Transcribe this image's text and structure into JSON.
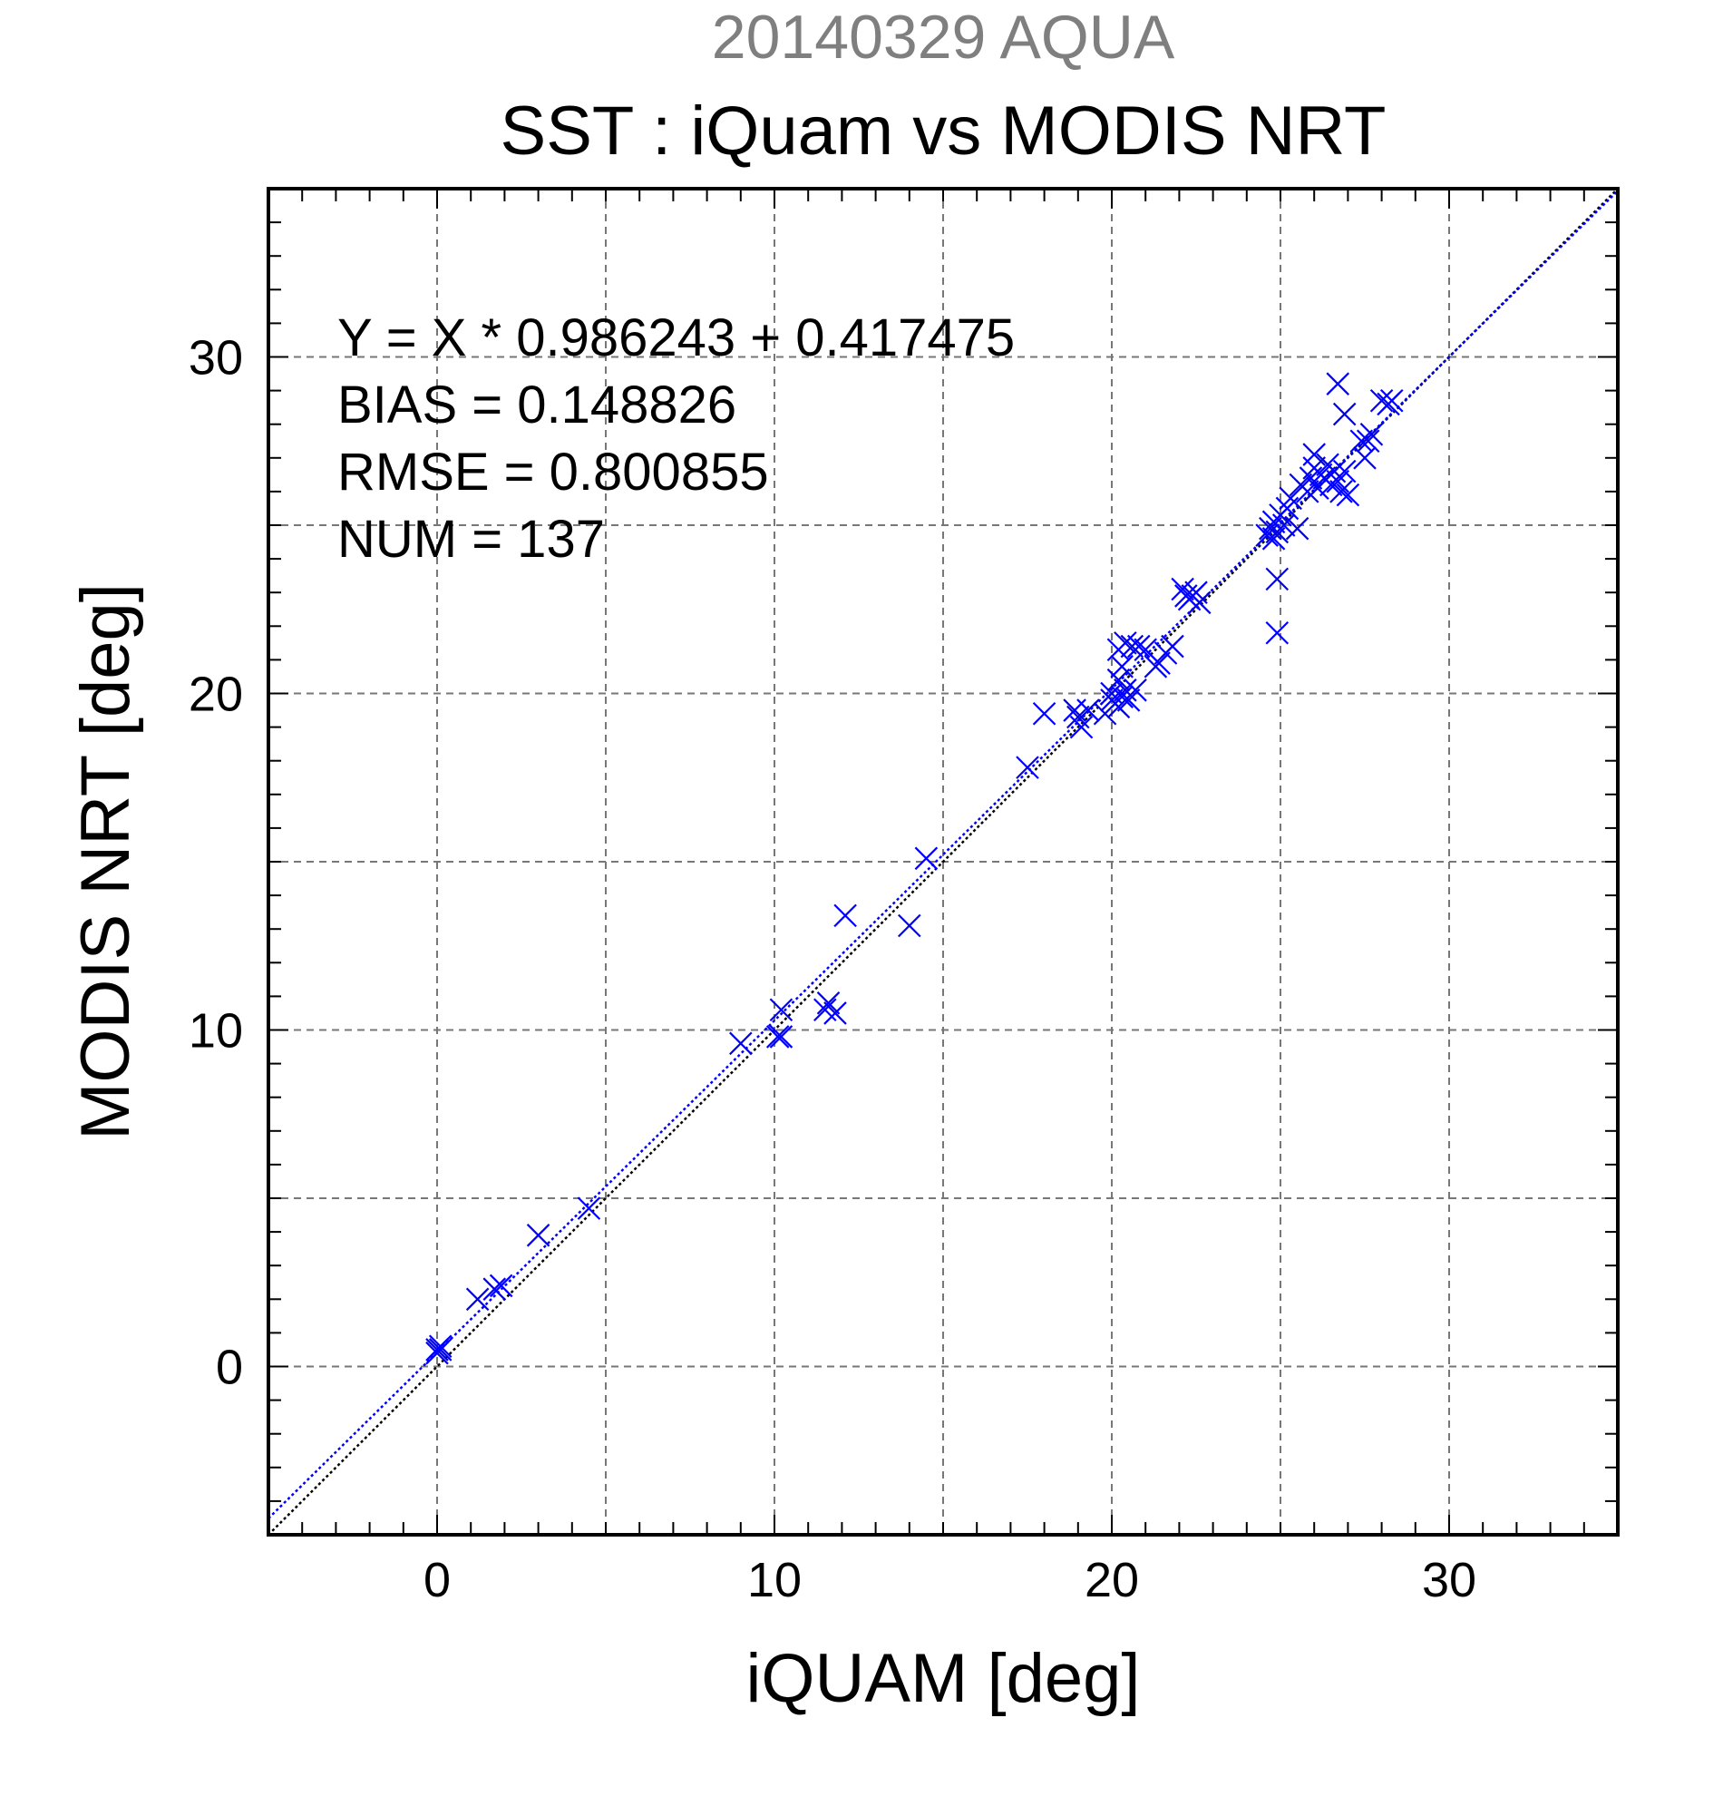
{
  "chart_data": {
    "type": "scatter",
    "supertitle": "20140329 AQUA",
    "title": "SST : iQuam vs MODIS NRT",
    "xlabel": "iQUAM [deg]",
    "ylabel": "MODIS NRT [deg]",
    "xlim": [
      -5,
      35
    ],
    "ylim": [
      -5,
      35
    ],
    "xticks": [
      "0",
      "10",
      "20",
      "30"
    ],
    "yticks": [
      "0",
      "10",
      "20",
      "30"
    ],
    "grid": true,
    "stats": [
      "Y = X * 0.986243 + 0.417475",
      "BIAS = 0.148826",
      "RMSE = 0.800855",
      "NUM = 137"
    ],
    "fit": {
      "slope": 0.986243,
      "intercept": 0.417475
    },
    "colors": {
      "points": "#0000ff",
      "fit_line": "#0000ff",
      "identity_line": "#000000",
      "supertitle": "#7f7f7f"
    },
    "points": [
      [
        0.0,
        0.5
      ],
      [
        0.1,
        0.6
      ],
      [
        0.0,
        0.4
      ],
      [
        0.1,
        0.5
      ],
      [
        1.2,
        2.0
      ],
      [
        1.7,
        2.3
      ],
      [
        1.9,
        2.4
      ],
      [
        3.0,
        3.9
      ],
      [
        4.5,
        4.7
      ],
      [
        9.0,
        9.6
      ],
      [
        10.1,
        9.8
      ],
      [
        10.2,
        9.8
      ],
      [
        10.2,
        10.6
      ],
      [
        11.5,
        10.6
      ],
      [
        11.6,
        10.8
      ],
      [
        11.8,
        10.5
      ],
      [
        12.1,
        13.4
      ],
      [
        14.0,
        13.1
      ],
      [
        14.5,
        15.1
      ],
      [
        17.5,
        17.8
      ],
      [
        18.0,
        19.4
      ],
      [
        18.9,
        19.5
      ],
      [
        19.0,
        19.3
      ],
      [
        19.1,
        19.0
      ],
      [
        19.3,
        19.5
      ],
      [
        19.8,
        19.4
      ],
      [
        20.0,
        19.8
      ],
      [
        20.0,
        20.0
      ],
      [
        20.1,
        19.7
      ],
      [
        20.2,
        19.6
      ],
      [
        20.3,
        19.9
      ],
      [
        20.4,
        20.1
      ],
      [
        20.5,
        19.8
      ],
      [
        20.7,
        20.1
      ],
      [
        20.2,
        20.4
      ],
      [
        20.3,
        20.8
      ],
      [
        20.2,
        21.3
      ],
      [
        20.4,
        21.5
      ],
      [
        20.6,
        21.4
      ],
      [
        20.8,
        21.4
      ],
      [
        21.0,
        21.3
      ],
      [
        21.3,
        20.8
      ],
      [
        21.4,
        20.9
      ],
      [
        21.6,
        21.2
      ],
      [
        21.8,
        21.4
      ],
      [
        22.1,
        23.1
      ],
      [
        22.3,
        22.8
      ],
      [
        22.4,
        22.9
      ],
      [
        22.6,
        22.7
      ],
      [
        22.2,
        22.9
      ],
      [
        22.5,
        23.0
      ],
      [
        24.6,
        24.7
      ],
      [
        24.7,
        24.9
      ],
      [
        24.8,
        25.1
      ],
      [
        24.9,
        24.8
      ],
      [
        24.8,
        24.6
      ],
      [
        24.9,
        23.4
      ],
      [
        24.9,
        21.8
      ],
      [
        25.0,
        25.3
      ],
      [
        25.1,
        25.0
      ],
      [
        25.2,
        25.5
      ],
      [
        25.3,
        25.8
      ],
      [
        25.5,
        24.9
      ],
      [
        25.6,
        26.2
      ],
      [
        25.8,
        26.0
      ],
      [
        25.9,
        26.4
      ],
      [
        26.0,
        26.7
      ],
      [
        26.1,
        26.1
      ],
      [
        26.0,
        27.1
      ],
      [
        26.2,
        26.5
      ],
      [
        26.3,
        26.4
      ],
      [
        26.4,
        26.8
      ],
      [
        26.5,
        26.2
      ],
      [
        26.6,
        26.6
      ],
      [
        26.7,
        26.3
      ],
      [
        26.8,
        26.0
      ],
      [
        26.9,
        26.6
      ],
      [
        27.0,
        25.9
      ],
      [
        26.7,
        29.2
      ],
      [
        26.9,
        28.3
      ],
      [
        27.4,
        27.5
      ],
      [
        27.5,
        27.0
      ],
      [
        27.6,
        27.5
      ],
      [
        27.7,
        27.7
      ],
      [
        28.0,
        28.7
      ],
      [
        28.2,
        28.6
      ],
      [
        28.3,
        28.7
      ]
    ]
  }
}
